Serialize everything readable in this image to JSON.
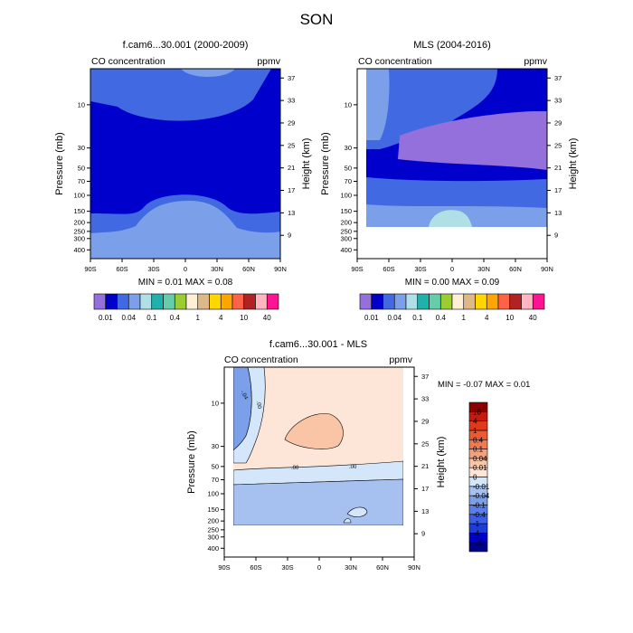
{
  "page_title": "SON",
  "chart_data": [
    {
      "type": "contour",
      "title": "f.cam6...30.001 (2000-2009)",
      "left_label": "CO concentration",
      "right_label": "ppmv",
      "xlabel": "",
      "ylabel": "Pressure (mb)",
      "ylabel_right": "Height (km)",
      "x_ticks": [
        "90S",
        "60S",
        "30S",
        "0",
        "30N",
        "60N",
        "90N"
      ],
      "x_range": [
        -90,
        90
      ],
      "pressure_ticks": [
        "10",
        "30",
        "50",
        "70",
        "100",
        "150",
        "200",
        "250",
        "300",
        "400"
      ],
      "height_ticks": [
        "37",
        "33",
        "29",
        "25",
        "21",
        "17",
        "13",
        "9"
      ],
      "min_max": "MIN =  0.01   MAX =   0.08",
      "colorbar": {
        "colors": [
          "#9370db",
          "#0000cd",
          "#4169e1",
          "#7b9fe8",
          "#b0e0e6",
          "#20b2aa",
          "#66cdaa",
          "#9acd32",
          "#fff0d5",
          "#deb887",
          "#ffd700",
          "#ffa500",
          "#ff6347",
          "#b22222",
          "#ffb6c1",
          "#ff1493"
        ],
        "labels": [
          "0.01",
          "0.04",
          "0.1",
          "0.4",
          "1",
          "4",
          "10",
          "40"
        ]
      }
    },
    {
      "type": "contour",
      "title": "MLS (2004-2016)",
      "left_label": "CO concentration",
      "right_label": "ppmv",
      "xlabel": "",
      "ylabel": "Pressure (mb)",
      "ylabel_right": "Height (km)",
      "x_ticks": [
        "90S",
        "60S",
        "30S",
        "0",
        "30N",
        "60N",
        "90N"
      ],
      "x_range": [
        -90,
        90
      ],
      "pressure_ticks": [
        "10",
        "30",
        "50",
        "70",
        "100",
        "150",
        "200",
        "250",
        "300",
        "400"
      ],
      "height_ticks": [
        "37",
        "33",
        "29",
        "25",
        "21",
        "17",
        "13",
        "9"
      ],
      "min_max": "MIN =  0.00   MAX =   0.09",
      "colorbar": {
        "colors": [
          "#9370db",
          "#0000cd",
          "#4169e1",
          "#7b9fe8",
          "#b0e0e6",
          "#20b2aa",
          "#66cdaa",
          "#9acd32",
          "#fff0d5",
          "#deb887",
          "#ffd700",
          "#ffa500",
          "#ff6347",
          "#b22222",
          "#ffb6c1",
          "#ff1493"
        ],
        "labels": [
          "0.01",
          "0.04",
          "0.1",
          "0.4",
          "1",
          "4",
          "10",
          "40"
        ]
      }
    },
    {
      "type": "contour",
      "title": "f.cam6...30.001 - MLS",
      "left_label": "CO concentration",
      "right_label": "ppmv",
      "xlabel": "",
      "ylabel": "Pressure (mb)",
      "ylabel_right": "Height (km)",
      "x_ticks": [
        "90S",
        "60S",
        "30S",
        "0",
        "30N",
        "60N",
        "90N"
      ],
      "x_range": [
        -90,
        90
      ],
      "pressure_ticks": [
        "10",
        "30",
        "50",
        "70",
        "100",
        "150",
        "200",
        "250",
        "300",
        "400"
      ],
      "height_ticks": [
        "37",
        "33",
        "29",
        "25",
        "21",
        "17",
        "13",
        "9"
      ],
      "min_max": "MIN = -0.07   MAX =   0.01",
      "contour_labels": [
        "-.04",
        ".00",
        ".00",
        ".00"
      ],
      "colorbar": {
        "colors": [
          "#00008b",
          "#0000cd",
          "#1e3cd8",
          "#3a5ee6",
          "#5b7fea",
          "#7b9fe8",
          "#a6c0f0",
          "#d4e6fa",
          "#fde6d8",
          "#f9c5a6",
          "#f5a07a",
          "#f07a52",
          "#eb5a32",
          "#e03a1e",
          "#c41a10",
          "#8b0000"
        ],
        "labels": [
          "-10",
          "-4",
          "-1",
          "-0.4",
          "-0.1",
          "-0.04",
          "-0.01",
          "0",
          "0.01",
          "0.04",
          "0.1",
          "0.4",
          "1",
          "4",
          "10"
        ]
      }
    }
  ]
}
